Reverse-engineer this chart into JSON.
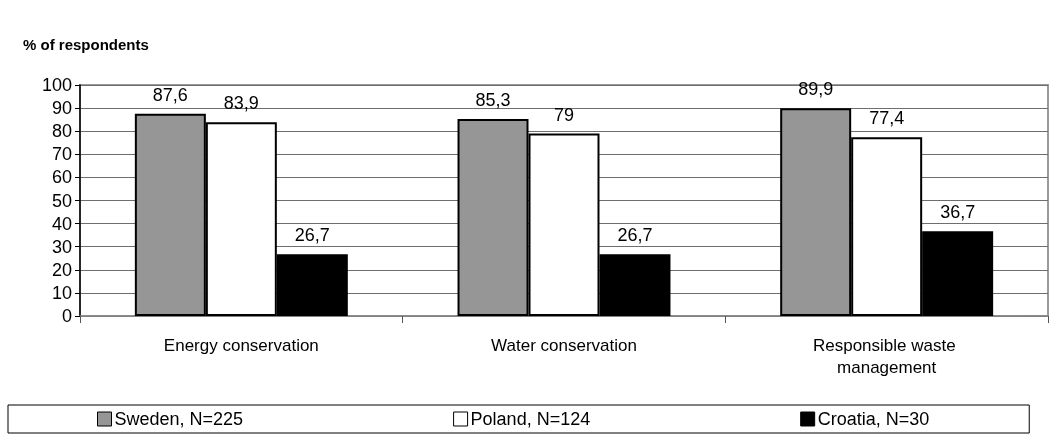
{
  "chart_data": {
    "type": "bar",
    "title": "% of respondents",
    "categories": [
      "Energy conservation",
      "Water conservation",
      "Responsible waste management"
    ],
    "series": [
      {
        "name": "Sweden, N=225",
        "color": "#969696",
        "values": [
          87.6,
          85.3,
          89.9
        ],
        "value_labels": [
          "87,6",
          "85,3",
          "89,9"
        ]
      },
      {
        "name": "Poland, N=124",
        "color": "#ffffff",
        "values": [
          83.9,
          79,
          77.4
        ],
        "value_labels": [
          "83,9",
          "79",
          "77,4"
        ]
      },
      {
        "name": "Croatia, N=30",
        "color": "#000000",
        "values": [
          26.7,
          26.7,
          36.7
        ],
        "value_labels": [
          "26,7",
          "26,7",
          "36,7"
        ]
      }
    ],
    "ylim": [
      0,
      100
    ],
    "yticks": [
      0,
      10,
      20,
      30,
      40,
      50,
      60,
      70,
      80,
      90,
      100
    ],
    "grid": "y",
    "legend": "bottom"
  }
}
